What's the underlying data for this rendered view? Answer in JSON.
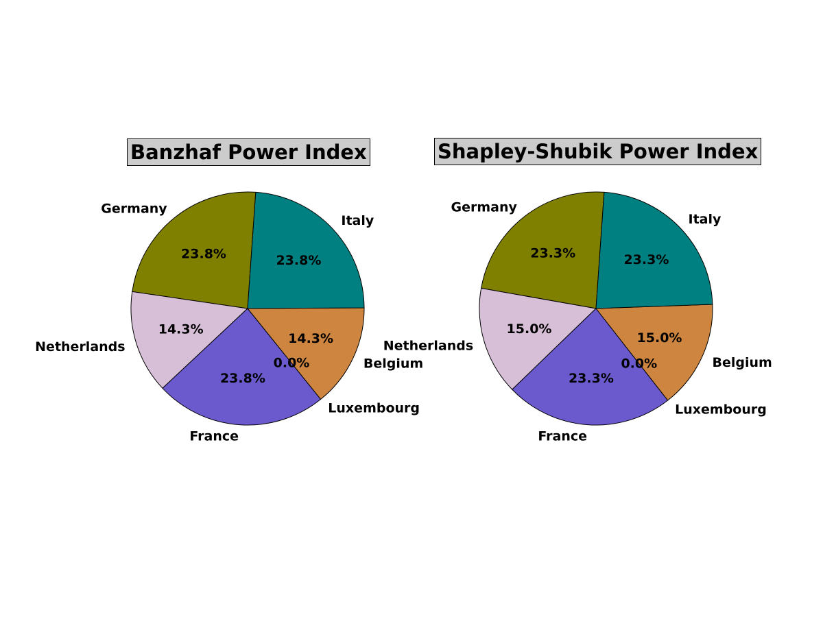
{
  "chart_data": [
    {
      "type": "pie",
      "title": "Banzhaf Power Index",
      "start_angle_deg": 86,
      "direction": "counterclockwise",
      "slices": [
        {
          "label": "Germany",
          "value": 23.8,
          "display": "23.8%",
          "color": "#808000"
        },
        {
          "label": "Netherlands",
          "value": 14.3,
          "display": "14.3%",
          "color": "#d8bfd8"
        },
        {
          "label": "France",
          "value": 23.8,
          "display": "23.8%",
          "color": "#6a5acd"
        },
        {
          "label": "Luxembourg",
          "value": 0.0,
          "display": "0.0%",
          "color": "#cd853f"
        },
        {
          "label": "Belgium",
          "value": 14.3,
          "display": "14.3%",
          "color": "#cd853f"
        },
        {
          "label": "Italy",
          "value": 23.8,
          "display": "23.8%",
          "color": "#008080"
        }
      ]
    },
    {
      "type": "pie",
      "title": "Shapley-Shubik Power Index",
      "start_angle_deg": 86,
      "direction": "counterclockwise",
      "slices": [
        {
          "label": "Germany",
          "value": 23.3,
          "display": "23.3%",
          "color": "#808000"
        },
        {
          "label": "Netherlands",
          "value": 15.0,
          "display": "15.0%",
          "color": "#d8bfd8"
        },
        {
          "label": "France",
          "value": 23.3,
          "display": "23.3%",
          "color": "#6a5acd"
        },
        {
          "label": "Luxembourg",
          "value": 0.0,
          "display": "0.0%",
          "color": "#cd853f"
        },
        {
          "label": "Belgium",
          "value": 15.0,
          "display": "15.0%",
          "color": "#cd853f"
        },
        {
          "label": "Italy",
          "value": 23.3,
          "display": "23.3%",
          "color": "#008080"
        }
      ]
    }
  ]
}
